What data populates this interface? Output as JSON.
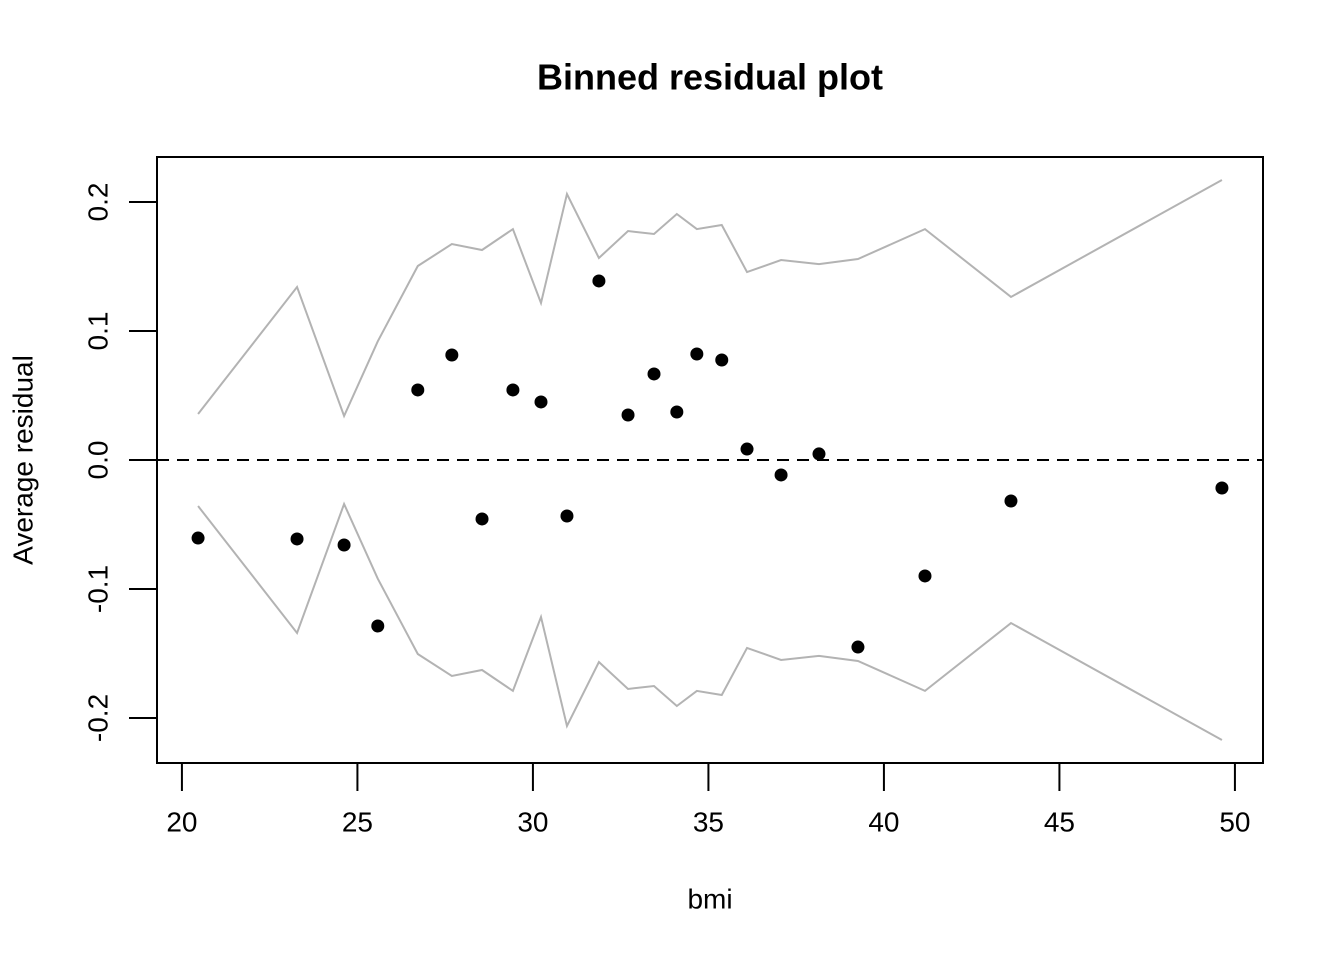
{
  "chart_data": {
    "type": "scatter",
    "title": "Binned residual plot",
    "x_label": "bmi",
    "y_label": "Average residual",
    "x": [
      20.46,
      23.28,
      24.62,
      25.58,
      26.72,
      27.69,
      28.55,
      29.43,
      30.23,
      30.97,
      31.88,
      32.71,
      33.45,
      34.1,
      34.67,
      35.38,
      36.1,
      37.07,
      38.15,
      39.26,
      41.17,
      43.62,
      49.63
    ],
    "series": [
      {
        "name": "Average residual",
        "color": "#000000",
        "style": "points",
        "values": [
          -0.0605,
          -0.0612,
          -0.0659,
          -0.1287,
          0.0543,
          0.0814,
          -0.0457,
          0.0543,
          0.045,
          -0.0434,
          0.1388,
          0.0349,
          0.0667,
          0.0372,
          0.0822,
          0.0775,
          0.0085,
          -0.0116,
          0.0047,
          -0.145,
          -0.0899,
          -0.0318,
          -0.0217
        ]
      },
      {
        "name": "Upper bound",
        "color": "#b3b3b3",
        "style": "line",
        "values": [
          0.0357,
          0.1341,
          0.0341,
          0.092,
          0.1504,
          0.1674,
          0.1628,
          0.179,
          0.1217,
          0.2062,
          0.1566,
          0.1775,
          0.1752,
          0.1907,
          0.179,
          0.1822,
          0.1457,
          0.155,
          0.1519,
          0.1558,
          0.179,
          0.1264,
          0.2171
        ]
      },
      {
        "name": "Lower bound",
        "color": "#b3b3b3",
        "style": "line",
        "values": [
          -0.0357,
          -0.1341,
          -0.0341,
          -0.092,
          -0.1504,
          -0.1674,
          -0.1628,
          -0.179,
          -0.1217,
          -0.2062,
          -0.1566,
          -0.1775,
          -0.1752,
          -0.1907,
          -0.179,
          -0.1822,
          -0.1457,
          -0.155,
          -0.1519,
          -0.1558,
          -0.179,
          -0.1264,
          -0.2171
        ]
      }
    ],
    "hline": 0,
    "xlim": [
      19.29,
      50.8
    ],
    "ylim": [
      -0.2349,
      0.2349
    ],
    "xticks": [
      20,
      25,
      30,
      35,
      40,
      45,
      50
    ],
    "yticks": [
      -0.2,
      -0.1,
      {
        "value": 0,
        "label": "0.0"
      },
      0.1,
      0.2
    ],
    "legend": false
  }
}
